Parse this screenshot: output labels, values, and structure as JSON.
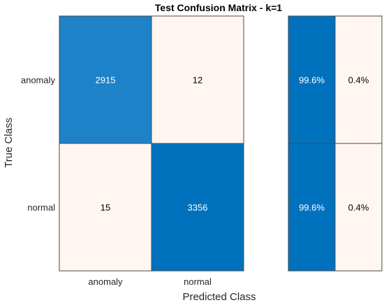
{
  "chart_data": {
    "type": "heatmap",
    "title": "Test Confusion Matrix - k=1",
    "xlabel": "Predicted Class",
    "ylabel": "True Class",
    "row_labels": [
      "anomaly",
      "normal"
    ],
    "col_labels": [
      "anomaly",
      "normal"
    ],
    "matrix": [
      [
        2915,
        12
      ],
      [
        15,
        3356
      ]
    ],
    "row_summary": [
      [
        "99.6%",
        "0.4%"
      ],
      [
        "99.6%",
        "0.4%"
      ]
    ],
    "colors": {
      "high": "#0072bd",
      "mid": "#1e82c8",
      "low": "#fff6f2",
      "border": "#4a4a4a",
      "text_dark": "#000000",
      "text_light": "#ffffff"
    }
  }
}
